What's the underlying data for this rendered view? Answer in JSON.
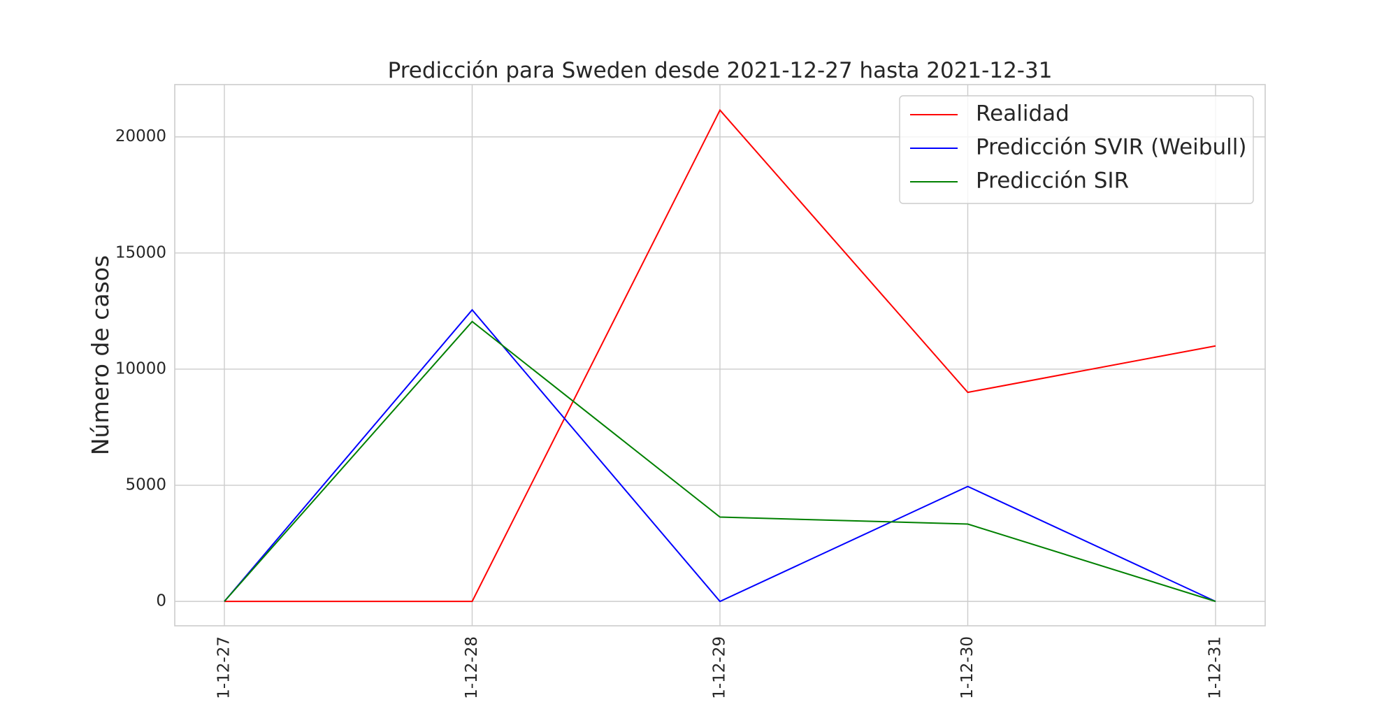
{
  "chart_data": {
    "type": "line",
    "title": "Predicción para Sweden desde 2021-12-27 hasta 2021-12-31",
    "xlabel": "",
    "ylabel": "Número de casos",
    "x": [
      "2021-12-27",
      "2021-12-28",
      "2021-12-29",
      "2021-12-30",
      "2021-12-31"
    ],
    "x_tick_labels": [
      "21-12-27",
      "21-12-28",
      "21-12-29",
      "21-12-30",
      "21-12-31"
    ],
    "y_ticks": [
      0,
      5000,
      10000,
      15000,
      20000
    ],
    "ylim": [
      -1050,
      22250
    ],
    "grid": true,
    "legend_position": "top-right",
    "series": [
      {
        "name": "Realidad",
        "color": "#ff0000",
        "values": [
          0,
          0,
          21150,
          9000,
          11000
        ]
      },
      {
        "name": "Predicción SVIR (Weibull)",
        "color": "#0000ff",
        "values": [
          0,
          12550,
          0,
          4950,
          0
        ]
      },
      {
        "name": "Predicción SIR",
        "color": "#008000",
        "values": [
          0,
          12050,
          3630,
          3330,
          0
        ]
      }
    ]
  }
}
